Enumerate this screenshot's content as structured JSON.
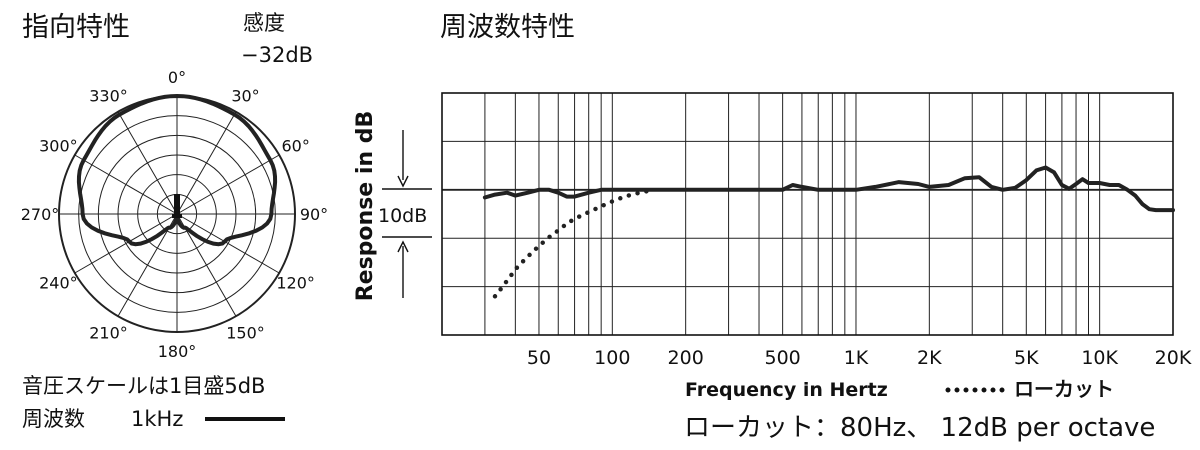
{
  "chart_data": [
    {
      "type": "polar",
      "title": "指向特性",
      "sensitivity_label": "感度",
      "sensitivity_value": "−32dB",
      "angle_labels": [
        "0°",
        "30°",
        "60°",
        "90°",
        "120°",
        "150°",
        "180°",
        "210°",
        "240°",
        "270°",
        "300°",
        "330°"
      ],
      "scale_note": "音圧スケールは1目盛5dB",
      "legend": {
        "prefix": "周波数",
        "label": "1kHz"
      },
      "grid_step_db": 5,
      "grid_rings": 6,
      "series": [
        {
          "name": "1kHz",
          "angles": [
            0,
            30,
            60,
            90,
            120,
            150,
            180,
            210,
            240,
            270,
            300,
            330
          ],
          "db": [
            0,
            -0.8,
            -2.6,
            -6,
            -16,
            -26,
            -29,
            -26,
            -16,
            -6,
            -2.6,
            -0.8
          ]
        }
      ]
    },
    {
      "type": "line",
      "title": "周波数特性",
      "xlabel": "Frequency in Hertz",
      "ylabel": "Response in dB",
      "scale_label": "10dB",
      "x_scale": "log",
      "xlim": [
        20,
        20000
      ],
      "x_tick_labels": [
        {
          "value": 50,
          "label": "50"
        },
        {
          "value": 100,
          "label": "100"
        },
        {
          "value": 200,
          "label": "200"
        },
        {
          "value": 500,
          "label": "500"
        },
        {
          "value": 1000,
          "label": "1K"
        },
        {
          "value": 2000,
          "label": "2K"
        },
        {
          "value": 5000,
          "label": "5K"
        },
        {
          "value": 10000,
          "label": "10K"
        },
        {
          "value": 20000,
          "label": "20K"
        }
      ],
      "y_grid_step_db": 5,
      "ylim": [
        -15,
        10
      ],
      "grid": true,
      "legend_text": "ローカット",
      "lowcut_note": "ローカット：80Hz、 12dB per octave",
      "series": [
        {
          "name": "",
          "style": "solid",
          "x": [
            30,
            33,
            37,
            40,
            45,
            50,
            55,
            60,
            65,
            70,
            80,
            90,
            100,
            120,
            150,
            200,
            300,
            400,
            500,
            550,
            600,
            700,
            800,
            1000,
            1200,
            1500,
            1800,
            2000,
            2400,
            2800,
            3200,
            3600,
            4000,
            4500,
            5000,
            5500,
            6000,
            6500,
            7000,
            7500,
            8000,
            8500,
            9000,
            9500,
            10000,
            11000,
            12000,
            13000,
            14000,
            15000,
            16000,
            17000,
            18000,
            19000,
            20000
          ],
          "y": [
            -0.8,
            -0.5,
            -0.3,
            -0.6,
            -0.3,
            0,
            0,
            -0.3,
            -0.7,
            -0.7,
            -0.3,
            0,
            0,
            0,
            0,
            0,
            0,
            0,
            0,
            0.5,
            0.3,
            0,
            0,
            0,
            0.3,
            0.8,
            0.6,
            0.3,
            0.5,
            1.2,
            1.3,
            0.3,
            0,
            0.2,
            1.0,
            2.0,
            2.3,
            1.8,
            0.5,
            0.1,
            0.6,
            1.1,
            0.7,
            0.7,
            0.7,
            0.5,
            0.5,
            0,
            -0.6,
            -1.5,
            -2.0,
            -2.1,
            -2.1,
            -2.1,
            -2.1
          ]
        },
        {
          "name": "ローカット",
          "style": "dotted",
          "x": [
            33,
            35,
            38,
            41,
            45,
            50,
            55,
            60,
            65,
            70,
            80,
            90,
            100,
            110,
            120,
            135,
            150
          ],
          "y": [
            -11,
            -10.2,
            -9.0,
            -7.9,
            -6.9,
            -5.8,
            -4.9,
            -4.2,
            -3.5,
            -3.0,
            -2.3,
            -1.7,
            -1.2,
            -0.8,
            -0.5,
            -0.2,
            0
          ]
        }
      ]
    }
  ]
}
